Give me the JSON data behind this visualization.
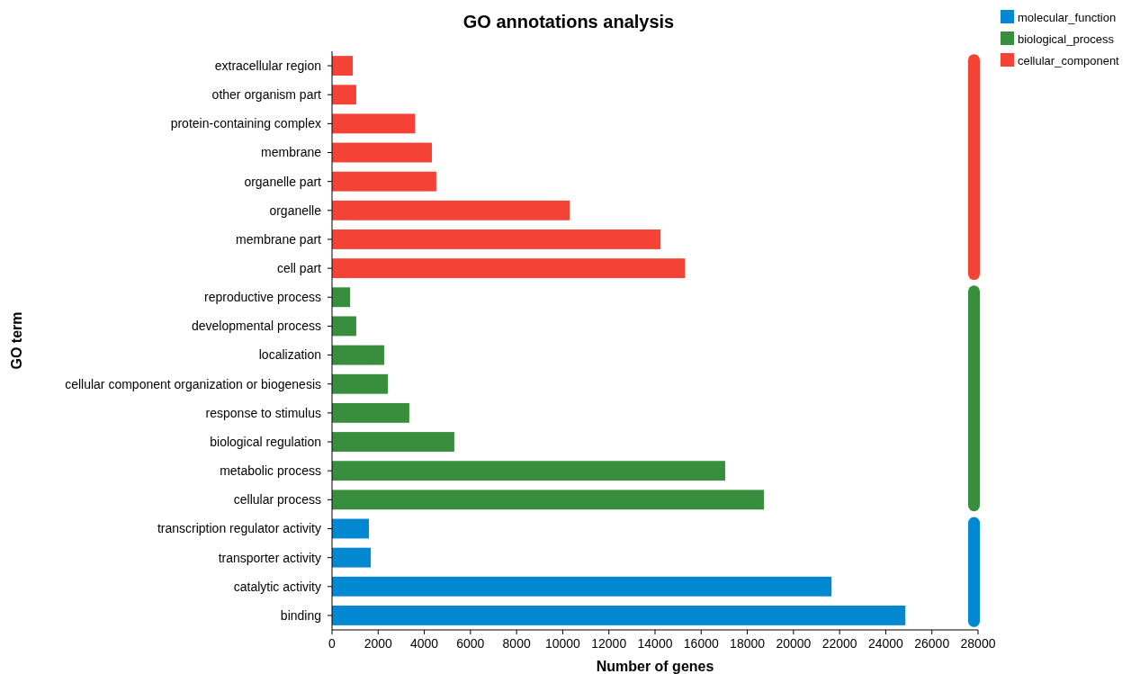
{
  "chart_data": {
    "type": "bar",
    "orientation": "horizontal",
    "title": "GO annotations analysis",
    "xlabel": "Number of genes",
    "ylabel": "GO term",
    "categories": [
      "extracellular region",
      "other organism part",
      "protein-containing complex",
      "membrane",
      "organelle part",
      "organelle",
      "membrane part",
      "cell part",
      "reproductive process",
      "developmental process",
      "localization",
      "cellular component organization or biogenesis",
      "response to stimulus",
      "biological regulation",
      "metabolic process",
      "cellular process",
      "transcription regulator activity",
      "transporter activity",
      "catalytic activity",
      "binding"
    ],
    "series": [
      {
        "name": "molecular_function",
        "color": "#0288d1",
        "values": [
          null,
          null,
          null,
          null,
          null,
          null,
          null,
          null,
          null,
          null,
          null,
          null,
          null,
          null,
          null,
          null,
          1600,
          1680,
          21650,
          24850
        ]
      },
      {
        "name": "biological_process",
        "color": "#388e3c",
        "values": [
          null,
          null,
          null,
          null,
          null,
          null,
          null,
          null,
          780,
          1050,
          2260,
          2420,
          3350,
          5300,
          17040,
          18720,
          null,
          null,
          null,
          null
        ]
      },
      {
        "name": "cellular_component",
        "color": "#f44336",
        "values": [
          900,
          1050,
          3600,
          4330,
          4520,
          10300,
          14240,
          15300,
          null,
          null,
          null,
          null,
          null,
          null,
          null,
          null,
          null,
          null,
          null,
          null
        ]
      }
    ],
    "xlim": [
      0,
      28000
    ],
    "xticks": [
      0,
      2000,
      4000,
      6000,
      8000,
      10000,
      12000,
      14000,
      16000,
      18000,
      20000,
      22000,
      24000,
      26000,
      28000
    ],
    "legend": "top right"
  }
}
